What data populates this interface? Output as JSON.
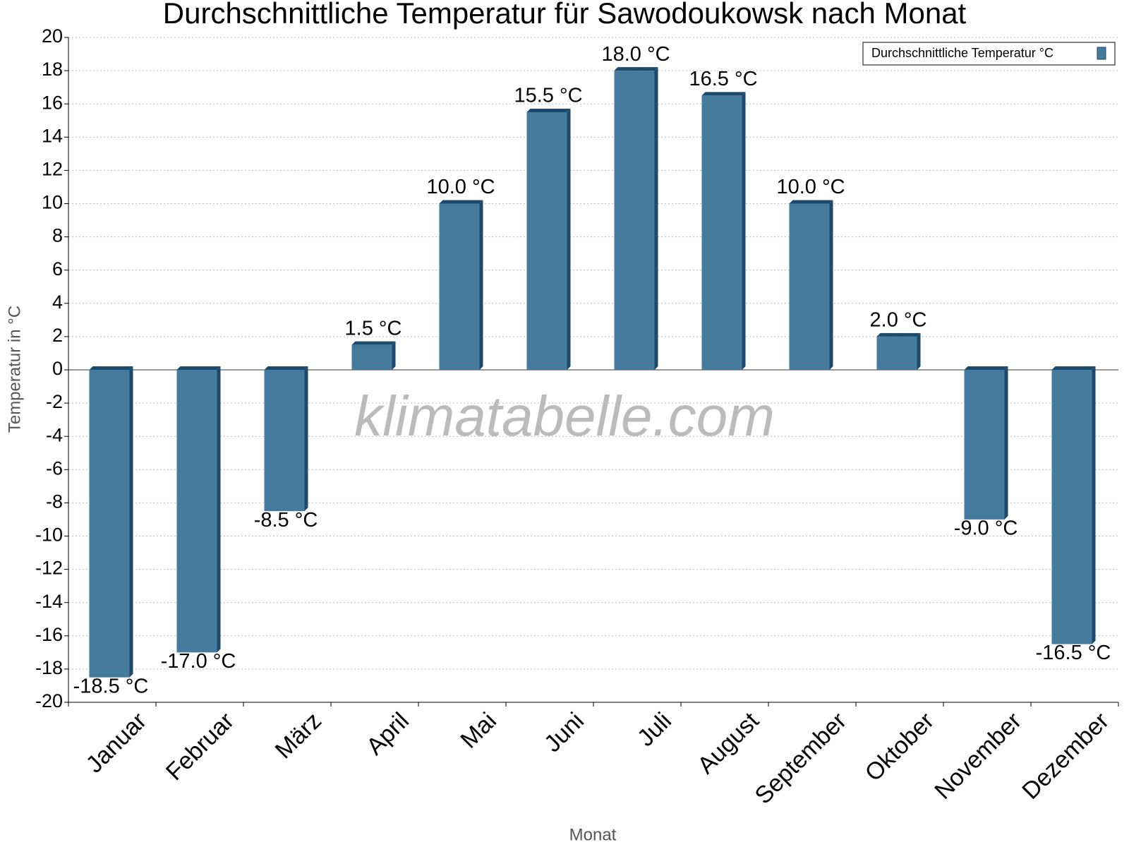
{
  "chart_data": {
    "type": "bar",
    "title": "Durchschnittliche Temperatur für Sawodoukowsk nach Monat",
    "x_label": "Monat",
    "y_label": "Temperatur in °C",
    "watermark": "klimatabelle.com",
    "categories": [
      "Januar",
      "Februar",
      "März",
      "April",
      "Mai",
      "Juni",
      "Juli",
      "August",
      "September",
      "Oktober",
      "November",
      "Dezember"
    ],
    "series": [
      {
        "name": "Durchschnittliche Temperatur °C",
        "color": "#457b9d",
        "values": [
          -18.5,
          -17.0,
          -8.5,
          1.5,
          10.0,
          15.5,
          18.0,
          16.5,
          10.0,
          2.0,
          -9.0,
          -16.5
        ],
        "value_labels": [
          "-18.5 °C",
          "-17.0 °C",
          "-8.5 °C",
          "1.5 °C",
          "10.0 °C",
          "15.5 °C",
          "18.0 °C",
          "16.5 °C",
          "10.0 °C",
          "2.0 °C",
          "-9.0 °C",
          "-16.5 °C"
        ]
      }
    ],
    "ylim": [
      -20,
      20
    ],
    "yticks": [
      -20,
      -18,
      -16,
      -14,
      -12,
      -10,
      -8,
      -6,
      -4,
      -2,
      0,
      2,
      4,
      6,
      8,
      10,
      12,
      14,
      16,
      18,
      20
    ],
    "grid": true,
    "legend": "top-right"
  }
}
